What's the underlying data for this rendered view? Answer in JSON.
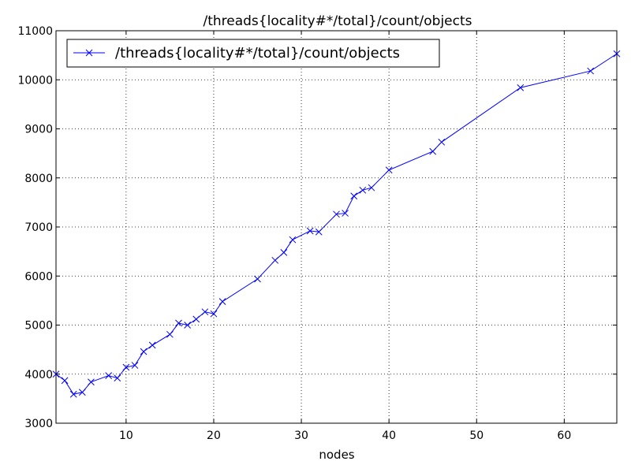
{
  "chart_data": {
    "type": "line",
    "title": "/threads{locality#*/total}/count/objects",
    "xlabel": "nodes",
    "ylabel": "",
    "xlim": [
      2,
      66
    ],
    "ylim": [
      3000,
      11000
    ],
    "grid": true,
    "legend_position": "upper-left",
    "x_ticks": [
      10,
      20,
      30,
      40,
      50,
      60
    ],
    "x_tick_labels": [
      "10",
      "20",
      "30",
      "40",
      "50",
      "60"
    ],
    "y_ticks": [
      3000,
      4000,
      5000,
      6000,
      7000,
      8000,
      9000,
      10000,
      11000
    ],
    "y_tick_labels": [
      "3000",
      "4000",
      "5000",
      "6000",
      "7000",
      "8000",
      "9000",
      "10000",
      "11000"
    ],
    "series": [
      {
        "name": "/threads{locality#*/total}/count/objects",
        "color": "#0000ff",
        "marker": "x",
        "x": [
          2,
          3,
          4,
          5,
          6,
          8,
          9,
          10,
          11,
          12,
          13,
          15,
          16,
          17,
          18,
          19,
          20,
          21,
          25,
          27,
          28,
          29,
          31,
          32,
          34,
          35,
          36,
          37,
          38,
          40,
          45,
          46,
          55,
          63,
          66
        ],
        "y": [
          4000,
          3870,
          3590,
          3630,
          3840,
          3970,
          3920,
          4140,
          4180,
          4460,
          4590,
          4810,
          5040,
          5000,
          5120,
          5270,
          5230,
          5480,
          5940,
          6320,
          6480,
          6740,
          6920,
          6900,
          7260,
          7280,
          7630,
          7750,
          7800,
          8160,
          8540,
          8730,
          9840,
          10180,
          10530
        ]
      }
    ]
  }
}
